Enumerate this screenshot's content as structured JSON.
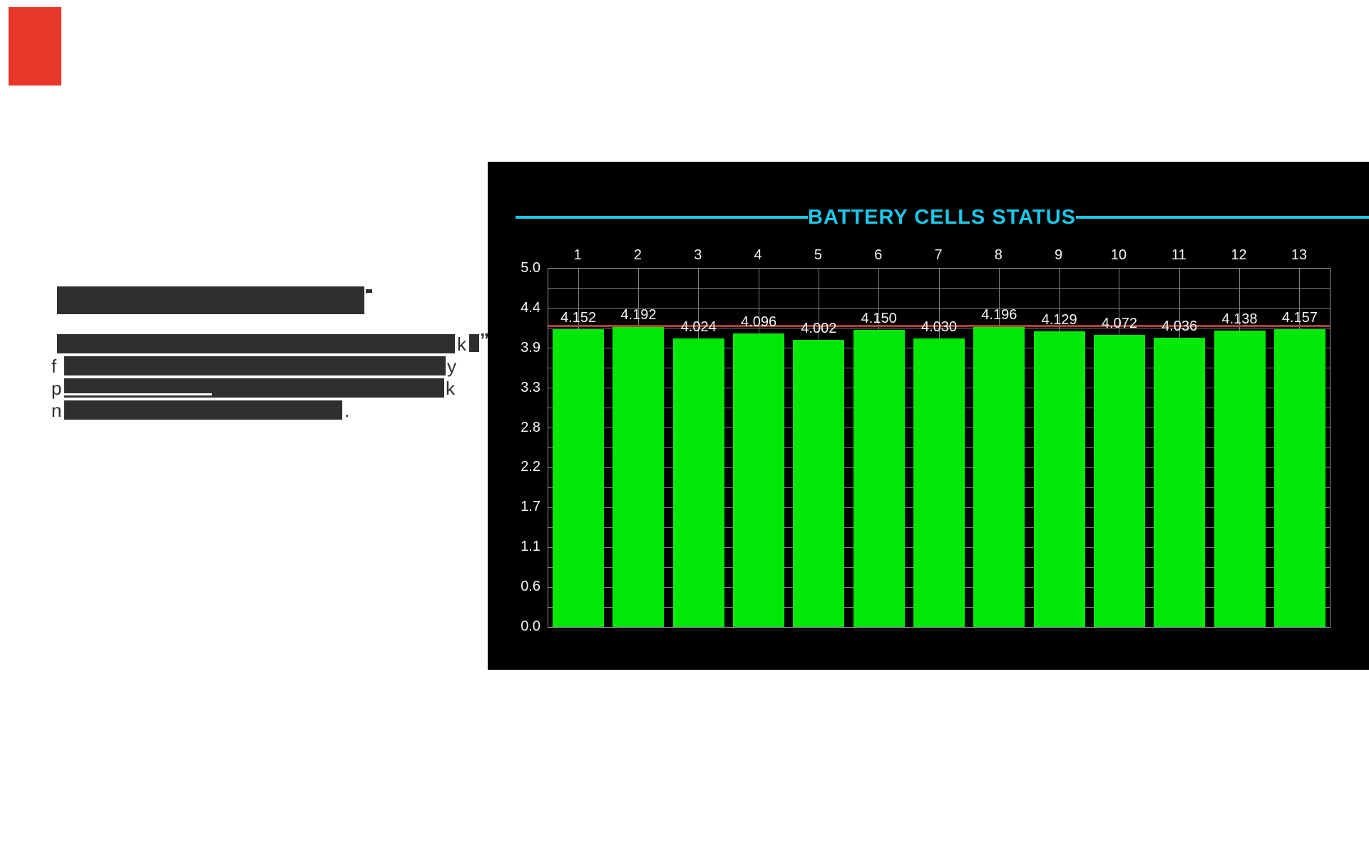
{
  "page": {
    "background": "#ffffff"
  },
  "red_marker": {
    "color": "#e8362a"
  },
  "left_text": {
    "text_color": "#2e2e2e",
    "heading": {
      "trailing_fragment_shape": "apostrophe-dash"
    },
    "lines": [
      {
        "leading": "",
        "trail_a": "k",
        "trail_b": "”"
      },
      {
        "leading": "f",
        "trail_a": "y",
        "trail_b": ""
      },
      {
        "leading": "p",
        "trail_a": "k",
        "trail_b": ""
      },
      {
        "leading": "n",
        "trail_a": ".",
        "trail_b": ""
      }
    ]
  },
  "panel": {
    "title": "BATTERY CELLS STATUS",
    "colors": {
      "panel_bg": "#000000",
      "title": "#1cc8e8",
      "bar": "#00e805",
      "grid": "#8f9499",
      "limit_line": "#b13c30",
      "axis_text": "#f5f5f5"
    }
  },
  "chart_data": {
    "type": "bar",
    "title": "BATTERY CELLS STATUS",
    "categories": [
      "1",
      "2",
      "3",
      "4",
      "5",
      "6",
      "7",
      "8",
      "9",
      "10",
      "11",
      "12",
      "13"
    ],
    "values": [
      4.152,
      4.192,
      4.024,
      4.096,
      4.002,
      4.15,
      4.03,
      4.196,
      4.129,
      4.072,
      4.036,
      4.138,
      4.157
    ],
    "value_labels": [
      "4.152",
      "4.192",
      "4.024",
      "4.096",
      "4.002",
      "4.150",
      "4.030",
      "4.196",
      "4.129",
      "4.072",
      "4.036",
      "4.138",
      "4.157"
    ],
    "y_tick_labels": [
      "5.0",
      "4.4",
      "3.9",
      "3.3",
      "2.8",
      "2.2",
      "1.7",
      "1.1",
      "0.6",
      "0.0"
    ],
    "ylim": [
      0,
      5
    ],
    "limit_line_value": 4.2,
    "xlabel": "",
    "ylabel": "",
    "legend": "none",
    "grid": "on",
    "gridlines": "major ticks plus midpoints horizontal; vertical at column centers"
  }
}
